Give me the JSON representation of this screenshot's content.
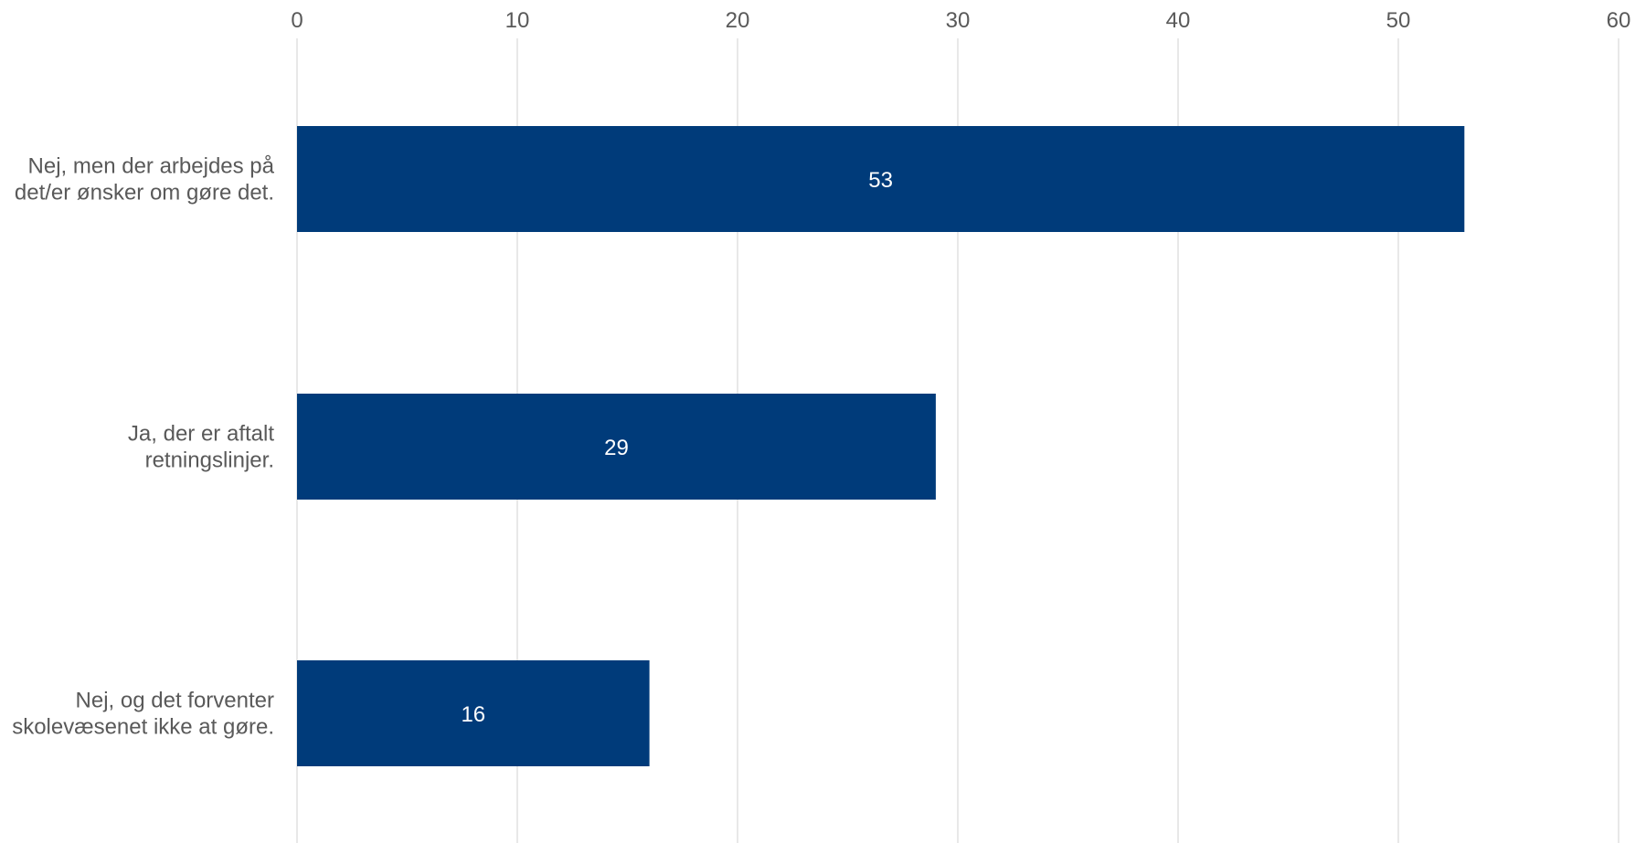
{
  "chart_data": {
    "type": "bar",
    "orientation": "horizontal",
    "categories": [
      [
        "Nej, men der arbejdes på",
        "det/er ønsker om gøre det."
      ],
      [
        "Ja, der er aftalt",
        "retningslinjer."
      ],
      [
        "Nej, og det forventer",
        "skolevæsenet ikke at gøre."
      ]
    ],
    "values": [
      53,
      29,
      16
    ],
    "data_labels": [
      "53",
      "29",
      "16"
    ],
    "x_ticks": [
      "0",
      "10",
      "20",
      "30",
      "40",
      "50",
      "60"
    ],
    "xlim": [
      0,
      60
    ],
    "x_axis_position": "top",
    "grid": true,
    "legend": "none",
    "title": "",
    "xlabel": "",
    "ylabel": ""
  },
  "colors": {
    "bar": "#003b7a",
    "gridline": "#d9d9d9",
    "label_text": "#595959",
    "data_label_text": "#ffffff"
  }
}
